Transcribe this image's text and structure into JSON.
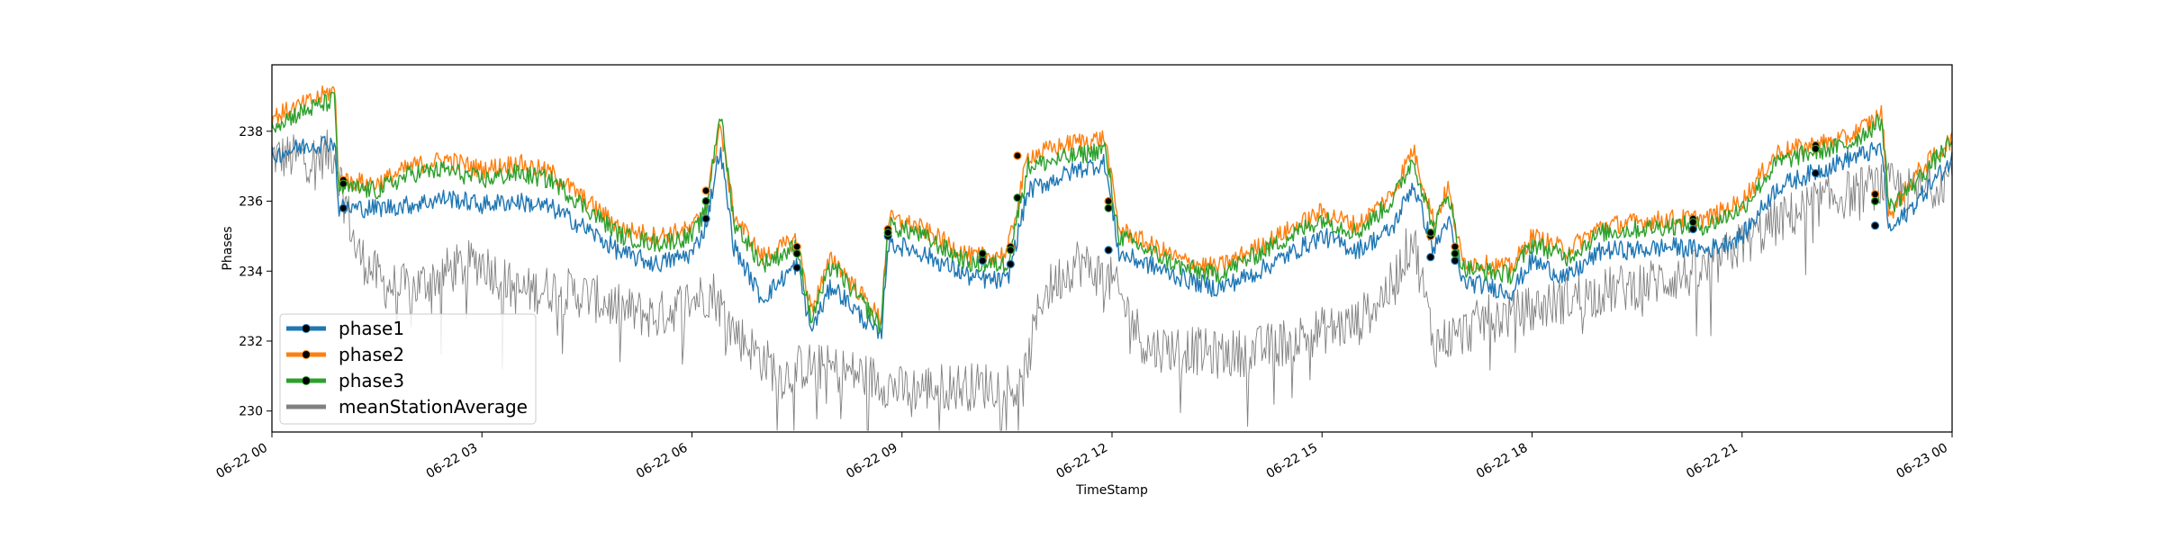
{
  "chart_data": {
    "type": "line",
    "title": "",
    "xlabel": "TimeStamp",
    "ylabel": "Phases",
    "xlim": [
      "06-22 00",
      "06-23 00"
    ],
    "ylim": [
      229.4,
      239.9
    ],
    "grid": false,
    "legend_position": "lower-left",
    "x_tick_labels": [
      "06-22 00",
      "06-22 03",
      "06-22 06",
      "06-22 09",
      "06-22 12",
      "06-22 15",
      "06-22 18",
      "06-22 21",
      "06-23 00"
    ],
    "x_ticks_hours": [
      0,
      3,
      6,
      9,
      12,
      15,
      18,
      21,
      24
    ],
    "y_tick_labels": [
      "230",
      "232",
      "234",
      "236",
      "238"
    ],
    "y_ticks": [
      230,
      232,
      234,
      236,
      238
    ],
    "series": [
      {
        "name": "phase1",
        "color": "#1f77b4",
        "x_hours": [
          0,
          0.5,
          0.9,
          0.95,
          1.5,
          2,
          2.5,
          3,
          3.5,
          4,
          4.5,
          5,
          5.5,
          6,
          6.2,
          6.4,
          6.6,
          7,
          7.5,
          7.7,
          8,
          8.7,
          8.8,
          9.2,
          10,
          10.5,
          10.8,
          11.5,
          11.9,
          12.1,
          12.5,
          13,
          13.5,
          14,
          15,
          15.5,
          16,
          16.3,
          16.6,
          16.8,
          17,
          17.3,
          17.7,
          18,
          18.5,
          19,
          19.5,
          20,
          20.5,
          21,
          21.5,
          22,
          22.5,
          23,
          23.1,
          23.5,
          24
        ],
        "values": [
          237.3,
          237.6,
          237.7,
          235.8,
          235.8,
          235.9,
          236.1,
          235.9,
          236.0,
          235.8,
          235.2,
          234.5,
          234.2,
          234.5,
          235.3,
          237.5,
          234.7,
          233.2,
          234.2,
          232.3,
          233.6,
          232.1,
          234.8,
          234.6,
          233.8,
          233.7,
          236.3,
          236.9,
          237.1,
          234.5,
          234.2,
          233.8,
          233.5,
          233.9,
          235.0,
          234.6,
          235.2,
          236.5,
          234.6,
          235.5,
          233.7,
          233.6,
          233.4,
          234.3,
          233.8,
          234.6,
          234.6,
          234.7,
          234.6,
          235.0,
          236.4,
          236.8,
          237.2,
          237.5,
          235.1,
          236.0,
          237.2
        ],
        "markers": [
          [
            1.02,
            235.8
          ],
          [
            6.2,
            235.5
          ],
          [
            7.5,
            234.1
          ],
          [
            8.8,
            235.0
          ],
          [
            10.15,
            234.3
          ],
          [
            10.55,
            234.2
          ],
          [
            11.95,
            234.6
          ],
          [
            16.55,
            234.4
          ],
          [
            16.9,
            234.3
          ],
          [
            20.3,
            235.2
          ],
          [
            22.05,
            236.8
          ],
          [
            22.9,
            235.3
          ]
        ]
      },
      {
        "name": "phase2",
        "color": "#ff7f0e",
        "x_hours": [
          0,
          0.5,
          0.9,
          0.95,
          1.5,
          2,
          2.5,
          3,
          3.5,
          4,
          4.5,
          5,
          5.5,
          6,
          6.2,
          6.4,
          6.6,
          7,
          7.5,
          7.7,
          8,
          8.7,
          8.8,
          9.2,
          10,
          10.5,
          10.8,
          11.5,
          11.9,
          12.1,
          12.5,
          13,
          13.5,
          14,
          15,
          15.5,
          16,
          16.3,
          16.6,
          16.8,
          17,
          17.3,
          17.7,
          18,
          18.5,
          19,
          19.5,
          20,
          20.5,
          21,
          21.5,
          22,
          22.5,
          23,
          23.1,
          23.5,
          24
        ],
        "values": [
          238.4,
          238.8,
          239.2,
          236.6,
          236.5,
          237.0,
          237.2,
          236.9,
          237.1,
          236.8,
          236.0,
          235.2,
          235.0,
          235.2,
          235.9,
          238.2,
          235.6,
          234.4,
          234.9,
          232.9,
          234.4,
          232.6,
          235.5,
          235.3,
          234.4,
          234.5,
          237.3,
          237.7,
          237.8,
          235.2,
          234.8,
          234.3,
          234.1,
          234.6,
          235.7,
          235.3,
          236.2,
          237.5,
          235.4,
          236.4,
          234.3,
          234.2,
          234.1,
          235.0,
          234.6,
          235.3,
          235.4,
          235.5,
          235.5,
          236.0,
          237.4,
          237.6,
          237.8,
          238.5,
          235.6,
          236.8,
          237.8
        ],
        "markers": [
          [
            1.02,
            236.6
          ],
          [
            6.2,
            236.3
          ],
          [
            7.5,
            234.7
          ],
          [
            8.8,
            235.2
          ],
          [
            10.15,
            234.4
          ],
          [
            10.55,
            234.7
          ],
          [
            10.65,
            237.3
          ],
          [
            11.95,
            236.0
          ],
          [
            16.55,
            235.0
          ],
          [
            16.9,
            234.7
          ],
          [
            20.3,
            235.5
          ],
          [
            22.05,
            237.6
          ],
          [
            22.9,
            236.2
          ]
        ]
      },
      {
        "name": "phase3",
        "color": "#2ca02c",
        "x_hours": [
          0,
          0.5,
          0.9,
          0.95,
          1.5,
          2,
          2.5,
          3,
          3.5,
          4,
          4.5,
          5,
          5.5,
          6,
          6.2,
          6.4,
          6.6,
          7,
          7.5,
          7.7,
          8,
          8.7,
          8.8,
          9.2,
          10,
          10.5,
          10.8,
          11.5,
          11.9,
          12.1,
          12.5,
          13,
          13.5,
          14,
          15,
          15.5,
          16,
          16.3,
          16.6,
          16.8,
          17,
          17.3,
          17.7,
          18,
          18.5,
          19,
          19.5,
          20,
          20.5,
          21,
          21.5,
          22,
          22.5,
          23,
          23.1,
          23.5,
          24
        ],
        "values": [
          238.2,
          238.6,
          238.9,
          236.4,
          236.3,
          236.8,
          236.9,
          236.6,
          236.8,
          236.6,
          235.8,
          235.0,
          234.8,
          235.0,
          235.7,
          238.6,
          235.4,
          234.2,
          234.7,
          232.6,
          234.2,
          232.4,
          235.3,
          235.1,
          234.2,
          234.2,
          237.0,
          237.3,
          237.5,
          235.0,
          234.6,
          234.1,
          233.9,
          234.4,
          235.5,
          235.1,
          236.0,
          237.2,
          235.2,
          236.3,
          234.1,
          234.0,
          233.9,
          234.8,
          234.4,
          235.1,
          235.2,
          235.3,
          235.3,
          235.8,
          237.1,
          237.4,
          237.6,
          238.3,
          235.8,
          236.6,
          237.7
        ],
        "markers": [
          [
            1.02,
            236.5
          ],
          [
            6.2,
            236.0
          ],
          [
            7.5,
            234.5
          ],
          [
            8.8,
            235.1
          ],
          [
            10.15,
            234.5
          ],
          [
            10.55,
            234.6
          ],
          [
            10.65,
            236.1
          ],
          [
            11.95,
            235.8
          ],
          [
            16.55,
            235.1
          ],
          [
            16.9,
            234.5
          ],
          [
            20.3,
            235.4
          ],
          [
            22.05,
            237.5
          ],
          [
            22.9,
            236.0
          ]
        ]
      },
      {
        "name": "meanStationAverage",
        "color": "#808080",
        "x_hours": [
          0,
          0.5,
          0.9,
          1.2,
          1.6,
          2.0,
          2.5,
          3.0,
          3.5,
          4.0,
          4.5,
          5.0,
          5.5,
          6.0,
          6.3,
          6.6,
          7.0,
          7.3,
          7.6,
          8.0,
          8.5,
          9.0,
          9.5,
          10.0,
          10.5,
          10.7,
          11.0,
          11.5,
          12.0,
          12.5,
          13.0,
          13.5,
          14.0,
          14.5,
          15.0,
          15.5,
          16.0,
          16.3,
          16.6,
          16.8,
          17.0,
          17.3,
          17.8,
          18.0,
          18.5,
          19.0,
          19.5,
          20.0,
          20.5,
          21.0,
          21.5,
          22.0,
          22.5,
          23.0,
          23.5,
          24
        ],
        "values": [
          237.3,
          237.2,
          237.4,
          234.6,
          233.6,
          233.5,
          234.0,
          234.3,
          233.4,
          233.5,
          233.3,
          232.9,
          232.7,
          233.2,
          233.4,
          232.3,
          231.5,
          231.0,
          231.3,
          231.2,
          231.0,
          230.6,
          230.7,
          230.7,
          230.8,
          230.5,
          233.3,
          234.3,
          233.7,
          231.8,
          231.8,
          231.6,
          231.7,
          232.0,
          232.3,
          232.5,
          233.6,
          235.0,
          231.9,
          232.1,
          232.2,
          232.6,
          232.8,
          232.9,
          233.2,
          233.4,
          233.6,
          233.8,
          234.0,
          234.8,
          235.4,
          235.9,
          236.2,
          236.5,
          236.2,
          236.8
        ]
      }
    ]
  }
}
